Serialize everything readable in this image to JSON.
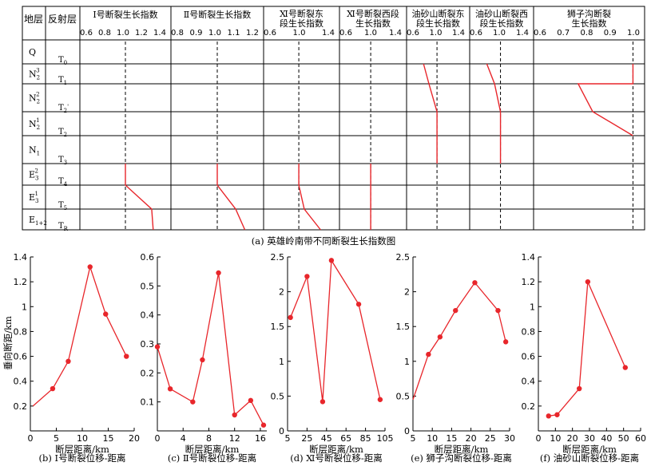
{
  "top_figure": {
    "caption": "(a) 英雄岭南带不同断裂生长指数图",
    "col_layer": "地层",
    "col_reflector": "反射层",
    "layers": [
      "Q",
      "N",
      "N",
      "N",
      "N",
      "E",
      "E",
      "E"
    ],
    "layer_sup": [
      "",
      "3",
      "2",
      "1",
      "",
      "2",
      "1",
      ""
    ],
    "layer_sub": [
      "",
      "2",
      "2",
      "2",
      "1",
      "3",
      "3",
      "1+2"
    ],
    "reflectors": [
      "T",
      "T",
      "T",
      "T",
      "T",
      "T",
      "T",
      "T",
      "T"
    ],
    "reflector_sub": [
      "0",
      "1",
      "2",
      "2",
      "3",
      "4",
      "5",
      "R",
      ""
    ],
    "reflector_prime": [
      "",
      "",
      "'",
      "",
      "",
      "",
      "",
      "",
      ""
    ],
    "panels": [
      {
        "title1": "Ⅰ号断裂生长指数",
        "title2": "",
        "ticks": [
          "0.6",
          "0.8",
          "1.0",
          "1.2",
          "1.4"
        ]
      },
      {
        "title1": "Ⅱ号断裂生长指数",
        "title2": "",
        "ticks": [
          "0.8",
          "0.9",
          "1.0",
          "1.1",
          "1.2"
        ]
      },
      {
        "title1": "Ⅺ号断裂东",
        "title2": "段生长指数",
        "ticks": [
          "0.6",
          "1.0",
          "1.4"
        ]
      },
      {
        "title1": "Ⅺ号断裂西段",
        "title2": "生长指数",
        "ticks": [
          "0.6",
          "1.0",
          "1.4"
        ]
      },
      {
        "title1": "油砂山断裂东",
        "title2": "段生长指数",
        "ticks": [
          "0.6",
          "1.0",
          "1.4"
        ]
      },
      {
        "title1": "油砂山断裂西",
        "title2": "段生长指数",
        "ticks": [
          "0.6",
          "1.0",
          "1.4"
        ]
      },
      {
        "title1": "狮子沟断裂",
        "title2": "生长指数",
        "ticks": [
          "0.6",
          "0.7",
          "0.8",
          "0.9",
          "1.0"
        ]
      }
    ]
  },
  "bottom_shared": {
    "ylabel": "垂向断距/km",
    "xlabel": "断层距离/km"
  },
  "chart_data": [
    {
      "type": "line",
      "name": "Ⅰ号断裂生长指数",
      "x_range": [
        0.5,
        1.5
      ],
      "boundaries": [
        "T3",
        "T4",
        "T5",
        "TR"
      ],
      "points": [
        [
          1.0,
          "T3"
        ],
        [
          1.0,
          "T4"
        ],
        [
          1.35,
          "T5"
        ],
        [
          1.37,
          "TR"
        ]
      ],
      "reference": 1.0
    },
    {
      "type": "line",
      "name": "Ⅱ号断裂生长指数",
      "x_range": [
        0.75,
        1.25
      ],
      "boundaries": [
        "T3",
        "T4",
        "T5",
        "TR"
      ],
      "points": [
        [
          1.0,
          "T3"
        ],
        [
          1.0,
          "T4"
        ],
        [
          1.12,
          "T5"
        ],
        [
          1.18,
          "TR"
        ]
      ],
      "reference": 1.0
    },
    {
      "type": "line",
      "name": "Ⅺ号断裂东段生长指数",
      "x_range": [
        0.5,
        1.6
      ],
      "boundaries": [
        "T3",
        "T4",
        "T5",
        "TR"
      ],
      "points": [
        [
          1.0,
          "T3"
        ],
        [
          1.0,
          "T4"
        ],
        [
          1.1,
          "T5"
        ],
        [
          1.4,
          "TR"
        ]
      ],
      "reference": 1.0
    },
    {
      "type": "line",
      "name": "Ⅺ号断裂西段生长指数",
      "x_range": [
        0.5,
        1.6
      ],
      "boundaries": [
        "T3",
        "T4",
        "T5",
        "TR"
      ],
      "points": [
        [
          1.0,
          "T3"
        ],
        [
          1.0,
          "TR"
        ]
      ],
      "reference": 1.0
    },
    {
      "type": "line",
      "name": "油砂山断裂东段生长指数",
      "x_range": [
        0.5,
        1.55
      ],
      "points": [
        [
          0.7,
          "T0"
        ],
        [
          0.82,
          "T1"
        ],
        [
          1.0,
          "T2'"
        ],
        [
          1.0,
          "T3"
        ]
      ],
      "reference": 1.0
    },
    {
      "type": "line",
      "name": "油砂山断裂西段生长指数",
      "x_range": [
        0.5,
        1.55
      ],
      "points": [
        [
          0.7,
          "T0"
        ],
        [
          0.87,
          "T1"
        ],
        [
          1.0,
          "T2'"
        ],
        [
          1.0,
          "T3"
        ]
      ],
      "reference": 1.0
    },
    {
      "type": "line",
      "name": "狮子沟断裂生长指数",
      "x_range": [
        0.5,
        1.02
      ],
      "points": [
        [
          1.0,
          "T0"
        ],
        [
          1.0,
          "T1"
        ],
        [
          0.7,
          "T1"
        ],
        [
          0.78,
          "T2'"
        ],
        [
          1.0,
          "T2"
        ]
      ],
      "reference": 1.0
    },
    {
      "type": "line",
      "caption": "(b) Ⅰ号断裂位移-距离",
      "xlim": [
        0,
        20
      ],
      "ylim": [
        0,
        1.4
      ],
      "xticks": [
        0,
        5,
        10,
        15,
        20
      ],
      "yticks": [
        0.2,
        0.4,
        0.6,
        0.8,
        1.0,
        1.2,
        1.4
      ],
      "x": [
        0.5,
        4.3,
        7.3,
        11.5,
        14.5,
        18.5
      ],
      "y": [
        0.2,
        0.34,
        0.56,
        1.32,
        0.94,
        0.6
      ],
      "markers_from_index": 1
    },
    {
      "type": "line",
      "caption": "(c) Ⅱ号断裂位移-距离",
      "xlim": [
        0,
        17
      ],
      "ylim": [
        0,
        0.6
      ],
      "xticks": [
        0,
        4,
        8,
        12,
        16
      ],
      "yticks": [
        0.1,
        0.2,
        0.3,
        0.4,
        0.5,
        0.6
      ],
      "x": [
        0,
        2,
        5.5,
        7,
        9.5,
        12,
        14.5,
        16.5
      ],
      "y": [
        0.29,
        0.145,
        0.1,
        0.245,
        0.545,
        0.055,
        0.105,
        0.02
      ],
      "markers_from_index": 0
    },
    {
      "type": "line",
      "caption": "(d) Ⅺ号断裂位移-距离",
      "xlim": [
        5,
        105
      ],
      "ylim": [
        0,
        2.5
      ],
      "xticks": [
        5,
        25,
        45,
        65,
        85,
        105
      ],
      "yticks": [
        0,
        0.5,
        1.0,
        1.5,
        2.0,
        2.5
      ],
      "x": [
        8,
        25,
        41,
        50,
        78,
        100
      ],
      "y": [
        1.63,
        2.22,
        0.42,
        2.45,
        1.82,
        0.45
      ],
      "markers_from_index": 0
    },
    {
      "type": "line",
      "caption": "(e) 狮子沟断裂位移-距离",
      "xlim": [
        5,
        30
      ],
      "ylim": [
        0,
        2.5
      ],
      "xticks": [
        5,
        10,
        15,
        20,
        25,
        30
      ],
      "yticks": [
        0,
        0.5,
        1.0,
        1.5,
        2.0,
        2.5
      ],
      "x": [
        5,
        9,
        12,
        16,
        21,
        27,
        29
      ],
      "y": [
        0.45,
        1.1,
        1.35,
        1.73,
        2.13,
        1.73,
        1.28
      ],
      "markers_from_index": 1
    },
    {
      "type": "line",
      "caption": "(f) 油砂山断裂位移-距离",
      "xlim": [
        0,
        60
      ],
      "ylim": [
        0,
        1.4
      ],
      "xticks": [
        0,
        10,
        20,
        30,
        40,
        50,
        60
      ],
      "yticks": [
        0.2,
        0.4,
        0.6,
        0.8,
        1.0,
        1.2,
        1.4
      ],
      "x": [
        6,
        11,
        24,
        29,
        51
      ],
      "y": [
        0.12,
        0.13,
        0.34,
        1.2,
        0.51
      ],
      "markers_from_index": 0
    }
  ],
  "colors": {
    "series": "#e8262b",
    "grid": "#000000"
  }
}
